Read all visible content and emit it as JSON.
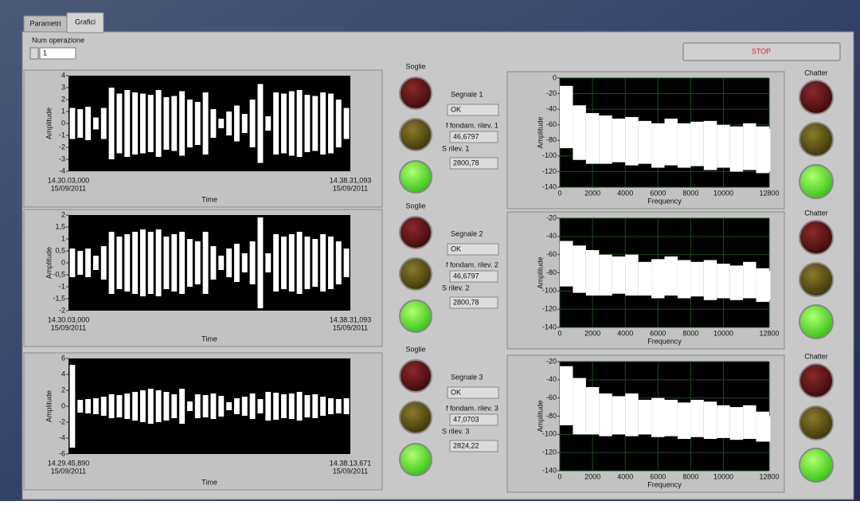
{
  "tabs": [
    "Parametri",
    "Grafici"
  ],
  "num_operazione": {
    "label": "Num operazione",
    "value": "1"
  },
  "stop_button": "STOP",
  "channels": [
    {
      "soglie": "Soglie",
      "segnale": "Segnale 1",
      "status": "OK",
      "f_label": "f fondam. rilev. 1",
      "f_value": "46,6797",
      "s_label": "S rilev. 1",
      "s_value": "2800,78",
      "chatter": "Chatter"
    },
    {
      "soglie": "Soglie",
      "segnale": "Segnale 2",
      "status": "OK",
      "f_label": "f fondam. rilev. 2",
      "f_value": "46,6797",
      "s_label": "S rilev. 2",
      "s_value": "2800,78",
      "chatter": "Chatter"
    },
    {
      "soglie": "Soglie",
      "segnale": "Segnale 3",
      "status": "OK",
      "f_label": "f fondam. rilev. 3",
      "f_value": "47,0703",
      "s_label": "S rilev. 3",
      "s_value": "2824,22",
      "chatter": "Chatter"
    }
  ],
  "chart_data": [
    {
      "type": "envelope",
      "xlabel": "Time",
      "ylabel": "Amplitude",
      "color": "#ffffff",
      "x_start": {
        "time": "14.30.03,000",
        "date": "15/09/2011"
      },
      "x_end": {
        "time": "14.38.31,093",
        "date": "15/09/2011"
      },
      "ylim": [
        -4,
        4
      ],
      "yticks": [
        4,
        3,
        2,
        1,
        0,
        -1,
        -2,
        -3,
        -4
      ],
      "values": [
        1.3,
        1.2,
        1.4,
        0.5,
        1.3,
        3.0,
        2.5,
        2.8,
        2.6,
        2.5,
        2.4,
        2.8,
        2.2,
        2.3,
        2.7,
        2.0,
        1.8,
        2.6,
        1.2,
        0.4,
        1.0,
        1.5,
        0.8,
        2.0,
        3.3,
        0.6,
        2.6,
        2.5,
        2.7,
        2.8,
        2.4,
        2.3,
        2.6,
        2.5,
        2.0,
        1.3
      ]
    },
    {
      "type": "envelope",
      "xlabel": "Time",
      "ylabel": "Amplitude",
      "color": "#ffffff",
      "x_start": {
        "time": "14.30.03,000",
        "date": "15/09/2011"
      },
      "x_end": {
        "time": "14.38.31,093",
        "date": "15/09/2011"
      },
      "ylim": [
        -2,
        2
      ],
      "yticks": [
        2,
        {
          "value": 1.5,
          "label": "1,5"
        },
        1,
        {
          "value": 0.5,
          "label": "0,5"
        },
        0,
        {
          "value": -0.5,
          "label": "-0,5"
        },
        -1,
        {
          "value": -1.5,
          "label": "-1,5"
        },
        -2
      ],
      "values": [
        0.6,
        0.5,
        0.6,
        0.3,
        0.7,
        1.3,
        1.1,
        1.2,
        1.3,
        1.4,
        1.3,
        1.4,
        1.1,
        1.2,
        1.3,
        1.0,
        0.9,
        1.3,
        0.7,
        0.3,
        0.6,
        0.8,
        0.4,
        0.9,
        1.9,
        0.4,
        1.2,
        1.1,
        1.2,
        1.3,
        1.1,
        1.0,
        1.2,
        1.1,
        0.9,
        0.6
      ]
    },
    {
      "type": "envelope",
      "xlabel": "Time",
      "ylabel": "Amplitude",
      "color": "#ffffff",
      "x_start": {
        "time": "14.29.45,890",
        "date": "15/09/2011"
      },
      "x_end": {
        "time": "14.38.13,671",
        "date": "15/09/2011"
      },
      "ylim": [
        -6,
        6
      ],
      "yticks": [
        6,
        4,
        2,
        0,
        -2,
        -4,
        -6
      ],
      "values": [
        5.2,
        0.8,
        0.9,
        1.0,
        1.2,
        1.5,
        1.4,
        1.6,
        1.8,
        2.0,
        2.2,
        2.0,
        1.8,
        1.5,
        2.2,
        0.6,
        1.5,
        1.4,
        1.6,
        1.3,
        0.5,
        1.0,
        1.2,
        1.6,
        0.9,
        1.8,
        1.7,
        1.5,
        1.6,
        1.8,
        1.4,
        1.5,
        1.2,
        1.0,
        0.9,
        1.0
      ]
    },
    {
      "type": "band",
      "xlabel": "Frequency",
      "ylabel": "Amplitude",
      "color": "#ffffff",
      "grid_color": "#1d4a1d",
      "xlim": [
        0,
        12800
      ],
      "xticks": [
        0,
        2000,
        4000,
        6000,
        8000,
        10000,
        12800
      ],
      "ylim": [
        -140,
        0
      ],
      "yticks": [
        0,
        -20,
        -40,
        -60,
        -80,
        -100,
        -120,
        -140
      ],
      "x": [
        0,
        800,
        1600,
        2400,
        3200,
        4000,
        4800,
        5600,
        6400,
        7200,
        8000,
        8800,
        9600,
        10400,
        11200,
        12000,
        12800
      ],
      "upper": [
        -10,
        -35,
        -45,
        -48,
        -52,
        -50,
        -55,
        -58,
        -52,
        -58,
        -56,
        -55,
        -60,
        -62,
        -58,
        -62,
        -65
      ],
      "lower": [
        -90,
        -105,
        -110,
        -110,
        -108,
        -112,
        -110,
        -115,
        -112,
        -115,
        -113,
        -118,
        -115,
        -120,
        -118,
        -122,
        -120
      ]
    },
    {
      "type": "band",
      "xlabel": "Frequency",
      "ylabel": "Amplitude",
      "color": "#ffffff",
      "grid_color": "#1d4a1d",
      "xlim": [
        0,
        12800
      ],
      "xticks": [
        0,
        2000,
        4000,
        6000,
        8000,
        10000,
        12800
      ],
      "ylim": [
        -140,
        -20
      ],
      "yticks": [
        -20,
        -40,
        -60,
        -80,
        -100,
        -120,
        -140
      ],
      "x": [
        0,
        800,
        1600,
        2400,
        3200,
        4000,
        4800,
        5600,
        6400,
        7200,
        8000,
        8800,
        9600,
        10400,
        11200,
        12000,
        12800
      ],
      "upper": [
        -45,
        -50,
        -55,
        -60,
        -62,
        -60,
        -68,
        -65,
        -62,
        -66,
        -68,
        -66,
        -70,
        -72,
        -68,
        -75,
        -78
      ],
      "lower": [
        -95,
        -102,
        -105,
        -105,
        -103,
        -105,
        -105,
        -108,
        -105,
        -108,
        -106,
        -110,
        -108,
        -110,
        -108,
        -112,
        -110
      ]
    },
    {
      "type": "band",
      "xlabel": "Frequency",
      "ylabel": "Amplitude",
      "color": "#ffffff",
      "grid_color": "#1d4a1d",
      "xlim": [
        0,
        12800
      ],
      "xticks": [
        0,
        2000,
        4000,
        6000,
        8000,
        10000,
        12800
      ],
      "ylim": [
        -140,
        -20
      ],
      "yticks": [
        -20,
        -40,
        -60,
        -80,
        -100,
        -120,
        -140
      ],
      "x": [
        0,
        800,
        1600,
        2400,
        3200,
        4000,
        4800,
        5600,
        6400,
        7200,
        8000,
        8800,
        9600,
        10400,
        11200,
        12000,
        12800
      ],
      "upper": [
        -25,
        -38,
        -48,
        -55,
        -58,
        -55,
        -62,
        -60,
        -62,
        -65,
        -62,
        -64,
        -68,
        -70,
        -68,
        -75,
        -80
      ],
      "lower": [
        -90,
        -100,
        -100,
        -102,
        -100,
        -102,
        -100,
        -103,
        -102,
        -105,
        -103,
        -105,
        -104,
        -106,
        -105,
        -108,
        -108
      ]
    }
  ]
}
